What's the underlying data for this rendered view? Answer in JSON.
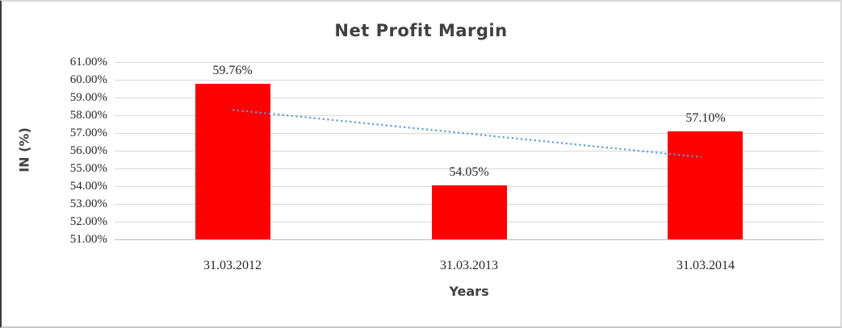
{
  "chart_data": {
    "type": "bar",
    "title": "Net Profit Margin",
    "categories": [
      "31.03.2012",
      "31.03.2013",
      "31.03.2014"
    ],
    "values": [
      59.76,
      54.05,
      57.1
    ],
    "value_labels": [
      "59.76%",
      "54.05%",
      "57.10%"
    ],
    "xlabel": "Years",
    "ylabel": "IN (%)",
    "ylim": [
      51,
      61
    ],
    "ytick_step": 1,
    "ytick_labels": [
      "61.00%",
      "60.00%",
      "59.00%",
      "58.00%",
      "57.00%",
      "56.00%",
      "55.00%",
      "54.00%",
      "53.00%",
      "52.00%",
      "51.00%"
    ],
    "grid": true,
    "legend": "none",
    "bar_color": "#ff0000",
    "trendline": {
      "style": "dotted",
      "color": "#5b9bd5",
      "start_value": 58.3,
      "end_value": 55.64
    },
    "colors": {
      "title_text": "#404040",
      "tick_text": "#262626",
      "gridline": "#d9d9d9",
      "axis_line": "#bdbdbd",
      "frame_border_left": "#3a3a3a",
      "frame_border_light": "#d9d9d9",
      "background": "#ffffff"
    }
  }
}
